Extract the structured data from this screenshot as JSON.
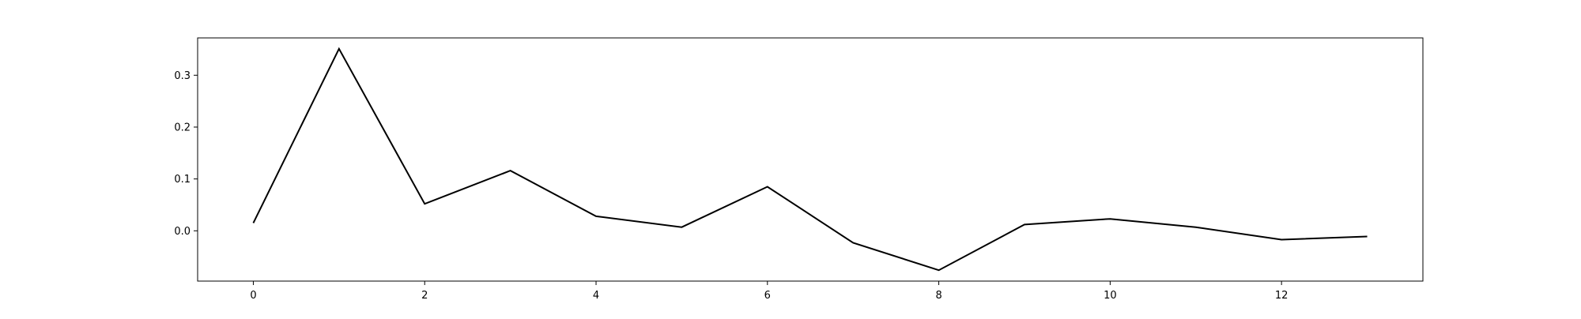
{
  "chart_data": {
    "type": "line",
    "title": "",
    "xlabel": "",
    "ylabel": "",
    "xlim": [
      -0.65,
      13.65
    ],
    "ylim": [
      -0.097,
      0.372
    ],
    "grid": false,
    "legend": "none",
    "x_ticks": [
      0,
      2,
      4,
      6,
      8,
      10,
      12
    ],
    "y_ticks": [
      0.0,
      0.1,
      0.2,
      0.3
    ],
    "y_tick_labels": [
      "0.0",
      "0.1",
      "0.2",
      "0.3"
    ],
    "series": [
      {
        "color": "#000000",
        "x": [
          0,
          1,
          2,
          3,
          4,
          5,
          6,
          7,
          8,
          9,
          10,
          11,
          12,
          13
        ],
        "y": [
          0.015,
          0.351,
          0.052,
          0.116,
          0.028,
          0.007,
          0.085,
          -0.023,
          -0.076,
          0.012,
          0.023,
          0.007,
          -0.017,
          -0.011
        ]
      }
    ]
  }
}
